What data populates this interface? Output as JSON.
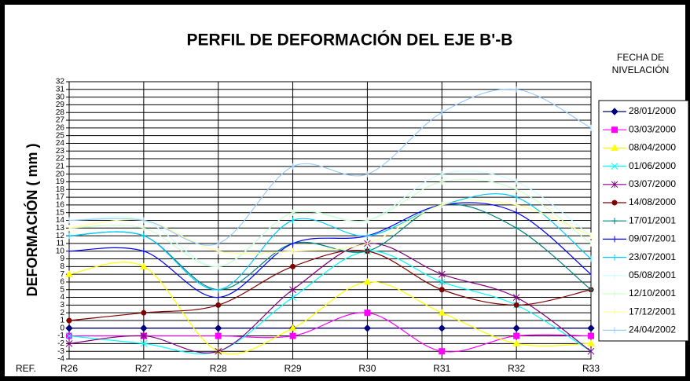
{
  "chart_data": {
    "type": "line",
    "title": "PERFIL DE DEFORMACIÓN DEL EJE B'-B",
    "legend_title": [
      "FECHA DE",
      "NIVELACIÓN"
    ],
    "y_label": "DEFORMACIÓN ( mm )",
    "x_label": "REF.",
    "categories": [
      "R26",
      "R27",
      "R28",
      "R29",
      "R30",
      "R31",
      "R32",
      "R33"
    ],
    "ylim": [
      -4,
      32
    ],
    "yticks": [
      -4,
      -3,
      -2,
      -1,
      0,
      1,
      2,
      3,
      4,
      5,
      6,
      7,
      8,
      9,
      10,
      11,
      12,
      13,
      14,
      15,
      16,
      17,
      18,
      19,
      20,
      21,
      22,
      23,
      24,
      25,
      26,
      27,
      28,
      29,
      30,
      31,
      32
    ],
    "grid": true,
    "smooth": true,
    "legend": "right",
    "series": [
      {
        "name": "28/01/2000",
        "color": "#000080",
        "marker": "diamond",
        "values": [
          0,
          0,
          0,
          0,
          0,
          0,
          0,
          0
        ]
      },
      {
        "name": "03/03/2000",
        "color": "#ff00ff",
        "marker": "square",
        "values": [
          -1,
          -1,
          -1,
          -1,
          2,
          -3,
          -1,
          -1
        ]
      },
      {
        "name": "08/04/2000",
        "color": "#ffff00",
        "marker": "triangle",
        "values": [
          7,
          8,
          -3,
          0,
          6,
          2,
          -2,
          -2
        ]
      },
      {
        "name": "01/06/2000",
        "color": "#00ffff",
        "marker": "x",
        "values": [
          -1,
          -2,
          -3,
          4,
          10,
          6,
          3,
          -3
        ]
      },
      {
        "name": "03/07/2000",
        "color": "#800080",
        "marker": "star",
        "values": [
          -2,
          -1,
          -3,
          5,
          11,
          7,
          4,
          -3
        ]
      },
      {
        "name": "14/08/2000",
        "color": "#800000",
        "marker": "circle",
        "values": [
          1,
          2,
          3,
          8,
          10,
          5,
          3,
          5
        ]
      },
      {
        "name": "17/01/2001",
        "color": "#008080",
        "marker": "plus",
        "values": [
          12,
          12,
          5,
          11,
          10,
          16,
          13,
          5
        ]
      },
      {
        "name": "09/07/2001",
        "color": "#0000ff",
        "marker": "dash",
        "values": [
          10,
          10,
          4,
          11,
          12,
          16,
          15,
          7
        ]
      },
      {
        "name": "23/07/2001",
        "color": "#00ccff",
        "marker": "dash",
        "values": [
          12,
          12,
          5,
          14,
          12,
          16,
          17,
          9
        ]
      },
      {
        "name": "05/08/2001",
        "color": "#ccffff",
        "marker": "dash",
        "values": [
          14,
          14,
          8,
          15,
          14,
          20,
          19,
          12
        ]
      },
      {
        "name": "12/10/2001",
        "color": "#ccffcc",
        "marker": "dash",
        "values": [
          13,
          13,
          8,
          15,
          14,
          19,
          18,
          11
        ]
      },
      {
        "name": "17/12/2001",
        "color": "#ffff99",
        "marker": "dash",
        "values": [
          13,
          14,
          10,
          10,
          11,
          16,
          16,
          12
        ]
      },
      {
        "name": "24/04/2002",
        "color": "#99ccff",
        "marker": "dash",
        "values": [
          14,
          14,
          11,
          21,
          20,
          28,
          31,
          26
        ]
      }
    ]
  }
}
